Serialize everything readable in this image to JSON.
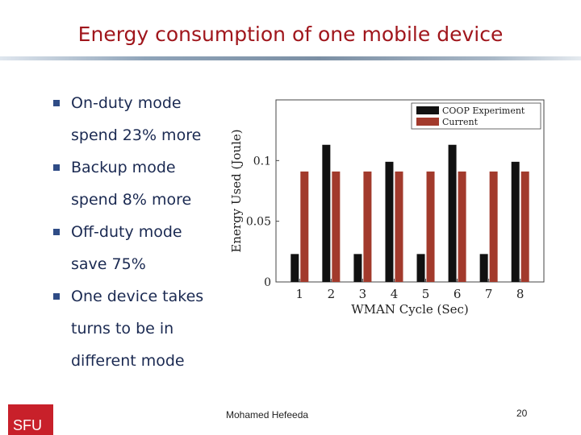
{
  "slide": {
    "title": "Energy consumption of one mobile device",
    "bullets": [
      {
        "line1": "On-duty mode",
        "line2": "spend 23% more"
      },
      {
        "line1": "Backup mode",
        "line2": "spend 8% more"
      },
      {
        "line1": "Off-duty mode",
        "line2": "save 75%"
      },
      {
        "line1": "One device takes",
        "line2": "turns to be in",
        "line3": "different mode"
      }
    ],
    "footer_author": "Mohamed Hefeeda",
    "page_number": "20",
    "logo_text": "SFU"
  },
  "colors": {
    "title": "#a0161c",
    "bullet_text": "#1b2a52",
    "series_coop": "#111111",
    "series_current": "#a23a2c",
    "logo": "#c8202a"
  },
  "chart_data": {
    "type": "bar",
    "xlabel": "WMAN Cycle (Sec)",
    "ylabel": "Energy Used (Joule)",
    "categories": [
      "1",
      "2",
      "3",
      "4",
      "5",
      "6",
      "7",
      "8"
    ],
    "series": [
      {
        "name": "COOP  Experiment",
        "values": [
          0.023,
          0.113,
          0.023,
          0.099,
          0.023,
          0.113,
          0.023,
          0.099
        ]
      },
      {
        "name": "Current",
        "values": [
          0.091,
          0.091,
          0.091,
          0.091,
          0.091,
          0.091,
          0.091,
          0.091
        ]
      }
    ],
    "yticks": [
      "0",
      "0.05",
      "0.1"
    ],
    "ylim": [
      0,
      0.15
    ],
    "legend_position": "top-right",
    "grid": false
  }
}
